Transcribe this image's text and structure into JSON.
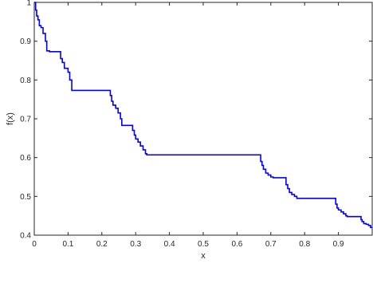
{
  "chart_data": {
    "type": "line",
    "title": "",
    "xlabel": "x",
    "ylabel": "f(x)",
    "xlim": [
      0,
      1
    ],
    "ylim": [
      0.4,
      1.0
    ],
    "xticks": [
      "0",
      "0.1",
      "0.2",
      "0.3",
      "0.4",
      "0.5",
      "0.6",
      "0.7",
      "0.8",
      "0.9"
    ],
    "yticks": [
      "0.4",
      "0.5",
      "0.6",
      "0.7",
      "0.8",
      "0.9",
      "1"
    ],
    "grid": false,
    "series": [
      {
        "color": "#0000ff",
        "step": true,
        "x": [
          0,
          0.004,
          0.007,
          0.011,
          0.015,
          0.02,
          0.026,
          0.033,
          0.037,
          0.045,
          0.074,
          0.078,
          0.083,
          0.089,
          0.1,
          0.105,
          0.111,
          0.222,
          0.225,
          0.229,
          0.233,
          0.241,
          0.248,
          0.255,
          0.259,
          0.288,
          0.291,
          0.296,
          0.3,
          0.307,
          0.314,
          0.322,
          0.329,
          0.333,
          0.667,
          0.67,
          0.674,
          0.678,
          0.685,
          0.692,
          0.7,
          0.707,
          0.741,
          0.745,
          0.75,
          0.755,
          0.762,
          0.77,
          0.777,
          0.889,
          0.892,
          0.896,
          0.9,
          0.908,
          0.915,
          0.922,
          0.926,
          0.963,
          0.967,
          0.97,
          0.975,
          0.982,
          0.989,
          0.995,
          1.0
        ],
        "y": [
          1.0,
          0.98,
          0.965,
          0.955,
          0.94,
          0.935,
          0.92,
          0.9,
          0.875,
          0.873,
          0.873,
          0.855,
          0.845,
          0.83,
          0.82,
          0.8,
          0.773,
          0.773,
          0.76,
          0.745,
          0.735,
          0.727,
          0.715,
          0.7,
          0.683,
          0.683,
          0.67,
          0.658,
          0.648,
          0.64,
          0.63,
          0.62,
          0.61,
          0.607,
          0.607,
          0.59,
          0.58,
          0.57,
          0.56,
          0.555,
          0.55,
          0.548,
          0.548,
          0.53,
          0.52,
          0.51,
          0.505,
          0.5,
          0.495,
          0.495,
          0.48,
          0.47,
          0.465,
          0.46,
          0.455,
          0.45,
          0.448,
          0.448,
          0.44,
          0.435,
          0.43,
          0.428,
          0.425,
          0.42,
          0.42
        ]
      }
    ]
  }
}
